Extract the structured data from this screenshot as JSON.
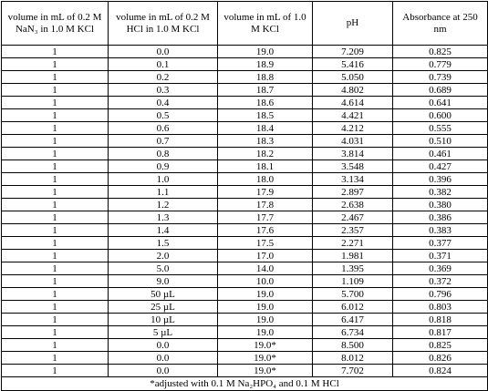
{
  "table": {
    "headers": [
      "volume in mL of 0.2 M NaN₃ in 1.0 M KCl",
      "volume in mL of 0.2 M HCl in 1.0 M KCl",
      "volume in mL of 1.0 M KCl",
      "pH",
      "Absorbance at 250 nm"
    ],
    "rows": [
      [
        "1",
        "0.0",
        "19.0",
        "7.209",
        "0.825"
      ],
      [
        "1",
        "0.1",
        "18.9",
        "5.416",
        "0.779"
      ],
      [
        "1",
        "0.2",
        "18.8",
        "5.050",
        "0.739"
      ],
      [
        "1",
        "0.3",
        "18.7",
        "4.802",
        "0.689"
      ],
      [
        "1",
        "0.4",
        "18.6",
        "4.614",
        "0.641"
      ],
      [
        "1",
        "0.5",
        "18.5",
        "4.421",
        "0.600"
      ],
      [
        "1",
        "0.6",
        "18.4",
        "4.212",
        "0.555"
      ],
      [
        "1",
        "0.7",
        "18.3",
        "4.031",
        "0.510"
      ],
      [
        "1",
        "0.8",
        "18.2",
        "3.814",
        "0.461"
      ],
      [
        "1",
        "0.9",
        "18.1",
        "3.548",
        "0.427"
      ],
      [
        "1",
        "1.0",
        "18.0",
        "3.134",
        "0.396"
      ],
      [
        "1",
        "1.1",
        "17.9",
        "2.897",
        "0.382"
      ],
      [
        "1",
        "1.2",
        "17.8",
        "2.638",
        "0.380"
      ],
      [
        "1",
        "1.3",
        "17.7",
        "2.467",
        "0.386"
      ],
      [
        "1",
        "1.4",
        "17.6",
        "2.357",
        "0.383"
      ],
      [
        "1",
        "1.5",
        "17.5",
        "2.271",
        "0.377"
      ],
      [
        "1",
        "2.0",
        "17.0",
        "1.981",
        "0.371"
      ],
      [
        "1",
        "5.0",
        "14.0",
        "1.395",
        "0.369"
      ],
      [
        "1",
        "9.0",
        "10.0",
        "1.109",
        "0.372"
      ],
      [
        "1",
        "50 µL",
        "19.0",
        "5.700",
        "0.796"
      ],
      [
        "1",
        "25 µL",
        "19.0",
        "6.012",
        "0.803"
      ],
      [
        "1",
        "10 µL",
        "19.0",
        "6.417",
        "0.818"
      ],
      [
        "1",
        "5 µL",
        "19.0",
        "6.734",
        "0.817"
      ],
      [
        "1",
        "0.0",
        "19.0*",
        "8.500",
        "0.825"
      ],
      [
        "1",
        "0.0",
        "19.0*",
        "8.012",
        "0.826"
      ],
      [
        "1",
        "0.0",
        "19.0*",
        "7.702",
        "0.824"
      ]
    ],
    "footnote": "*adjusted with 0.1 M Na₂HPO₄ and 0.1 M HCl"
  }
}
